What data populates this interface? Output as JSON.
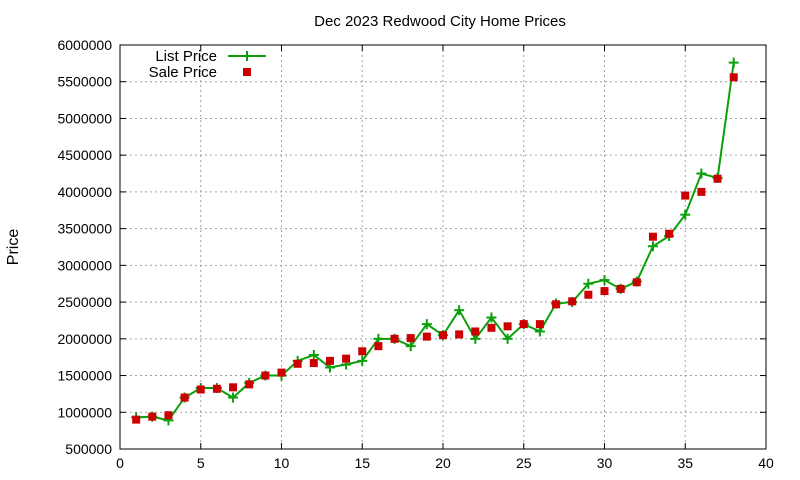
{
  "chart_data": {
    "type": "line",
    "title": "Dec 2023 Redwood City Home Prices",
    "xlabel": "",
    "ylabel": "Price",
    "xlim": [
      0,
      40
    ],
    "ylim": [
      500000,
      6000000
    ],
    "x_ticks": [
      0,
      5,
      10,
      15,
      20,
      25,
      30,
      35,
      40
    ],
    "y_ticks": [
      500000,
      1000000,
      1500000,
      2000000,
      2500000,
      3000000,
      3500000,
      4000000,
      4500000,
      5000000,
      5500000,
      6000000
    ],
    "grid": true,
    "legend_position": "top-left",
    "series": [
      {
        "name": "List Price",
        "style": "line-with-plus-markers",
        "color": "#0aa00a",
        "x": [
          1,
          2,
          3,
          4,
          5,
          6,
          7,
          8,
          9,
          10,
          11,
          12,
          13,
          14,
          15,
          16,
          17,
          18,
          19,
          20,
          21,
          22,
          23,
          24,
          25,
          26,
          27,
          28,
          29,
          30,
          31,
          32,
          33,
          34,
          35,
          36,
          37,
          38
        ],
        "values": [
          930000,
          940000,
          890000,
          1200000,
          1330000,
          1330000,
          1200000,
          1400000,
          1500000,
          1500000,
          1700000,
          1780000,
          1610000,
          1650000,
          1700000,
          2000000,
          2000000,
          1900000,
          2200000,
          2050000,
          2390000,
          2000000,
          2290000,
          2000000,
          2200000,
          2100000,
          2480000,
          2500000,
          2750000,
          2800000,
          2680000,
          2780000,
          3260000,
          3400000,
          3690000,
          4250000,
          4190000,
          5760000
        ]
      },
      {
        "name": "Sale Price",
        "style": "square-markers",
        "color": "#cc0000",
        "x": [
          1,
          2,
          3,
          4,
          5,
          6,
          7,
          8,
          9,
          10,
          11,
          12,
          13,
          14,
          15,
          16,
          17,
          18,
          19,
          20,
          21,
          22,
          23,
          24,
          25,
          26,
          27,
          28,
          29,
          30,
          31,
          32,
          33,
          34,
          35,
          36,
          37,
          38
        ],
        "values": [
          900000,
          940000,
          960000,
          1200000,
          1310000,
          1320000,
          1340000,
          1380000,
          1500000,
          1540000,
          1660000,
          1670000,
          1700000,
          1730000,
          1830000,
          1900000,
          2000000,
          2010000,
          2030000,
          2050000,
          2060000,
          2100000,
          2150000,
          2170000,
          2200000,
          2200000,
          2470000,
          2510000,
          2600000,
          2650000,
          2680000,
          2770000,
          3390000,
          3430000,
          3950000,
          4000000,
          4180000,
          5560000
        ]
      }
    ]
  }
}
